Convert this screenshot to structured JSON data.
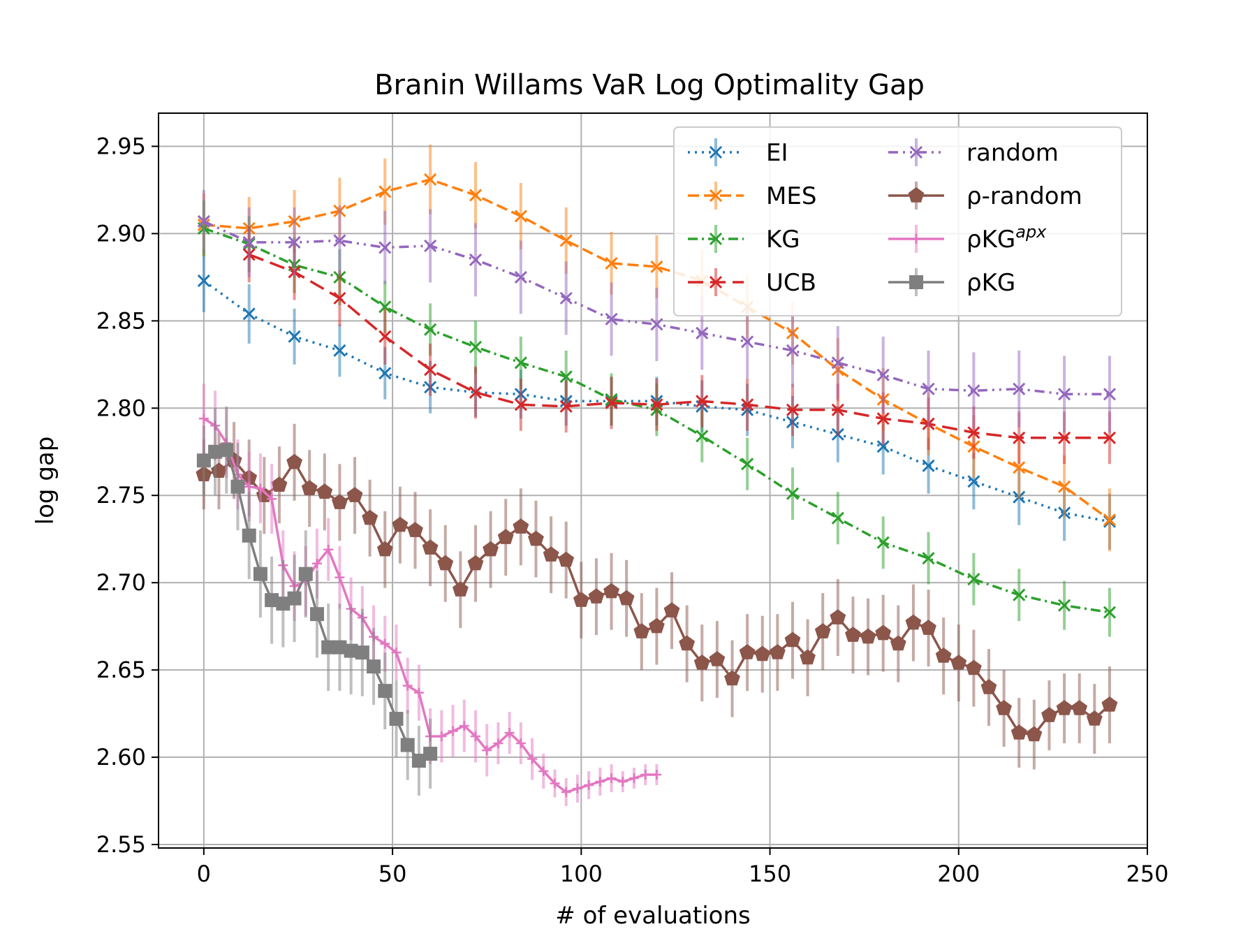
{
  "chart_data": {
    "type": "line",
    "title": "Branin Willams VaR Log Optimality Gap",
    "xlabel": "# of evaluations",
    "ylabel": "log gap",
    "xlim": [
      -12,
      250
    ],
    "ylim": [
      2.548,
      2.969
    ],
    "xticks": [
      0,
      50,
      100,
      150,
      200,
      250
    ],
    "xtick_labels": [
      "0",
      "50",
      "100",
      "150",
      "200",
      "250"
    ],
    "yticks": [
      2.55,
      2.6,
      2.65,
      2.7,
      2.75,
      2.8,
      2.85,
      2.9,
      2.95
    ],
    "ytick_labels": [
      "2.55",
      "2.60",
      "2.65",
      "2.70",
      "2.75",
      "2.80",
      "2.85",
      "2.90",
      "2.95"
    ],
    "grid": true,
    "legend_position": "top-right",
    "series": [
      {
        "name": "EI",
        "label": "EI",
        "color": "#1f77b4",
        "dash": "dotted",
        "marker": "x",
        "x": [
          0,
          12,
          24,
          36,
          48,
          60,
          72,
          84,
          96,
          108,
          120,
          132,
          144,
          156,
          168,
          180,
          192,
          204,
          216,
          228,
          240
        ],
        "y": [
          2.873,
          2.854,
          2.841,
          2.833,
          2.82,
          2.812,
          2.809,
          2.808,
          2.804,
          2.804,
          2.804,
          2.801,
          2.799,
          2.792,
          2.785,
          2.778,
          2.767,
          2.758,
          2.749,
          2.74,
          2.735
        ],
        "err": [
          0.018,
          0.017,
          0.016,
          0.015,
          0.015,
          0.015,
          0.014,
          0.014,
          0.014,
          0.014,
          0.014,
          0.015,
          0.015,
          0.015,
          0.016,
          0.016,
          0.016,
          0.016,
          0.016,
          0.016,
          0.016
        ]
      },
      {
        "name": "MES",
        "label": "MES",
        "color": "#ff7f0e",
        "dash": "dashed",
        "marker": "x",
        "x": [
          0,
          12,
          24,
          36,
          48,
          60,
          72,
          84,
          96,
          108,
          120,
          132,
          144,
          156,
          168,
          180,
          192,
          204,
          216,
          228,
          240
        ],
        "y": [
          2.905,
          2.903,
          2.907,
          2.913,
          2.924,
          2.931,
          2.922,
          2.91,
          2.896,
          2.883,
          2.881,
          2.873,
          2.858,
          2.843,
          2.822,
          2.805,
          2.791,
          2.778,
          2.766,
          2.755,
          2.736
        ],
        "err": [
          0.018,
          0.018,
          0.018,
          0.019,
          0.019,
          0.02,
          0.019,
          0.019,
          0.019,
          0.018,
          0.018,
          0.018,
          0.018,
          0.018,
          0.018,
          0.018,
          0.018,
          0.018,
          0.018,
          0.018,
          0.018
        ]
      },
      {
        "name": "KG",
        "label": "KG",
        "color": "#2ca02c",
        "dash": "dashdot",
        "marker": "x",
        "x": [
          0,
          12,
          24,
          36,
          48,
          60,
          72,
          84,
          96,
          108,
          120,
          132,
          144,
          156,
          168,
          180,
          192,
          204,
          216,
          228,
          240
        ],
        "y": [
          2.903,
          2.894,
          2.882,
          2.875,
          2.858,
          2.845,
          2.835,
          2.826,
          2.818,
          2.805,
          2.799,
          2.784,
          2.768,
          2.751,
          2.737,
          2.723,
          2.714,
          2.702,
          2.693,
          2.687,
          2.683
        ],
        "err": [
          0.016,
          0.016,
          0.016,
          0.016,
          0.015,
          0.015,
          0.015,
          0.015,
          0.015,
          0.015,
          0.015,
          0.015,
          0.015,
          0.015,
          0.015,
          0.015,
          0.015,
          0.015,
          0.015,
          0.014,
          0.014
        ]
      },
      {
        "name": "UCB",
        "label": "UCB",
        "color": "#d62728",
        "dash": "longdash",
        "marker": "x",
        "x": [
          12,
          24,
          36,
          48,
          60,
          72,
          84,
          96,
          108,
          120,
          132,
          144,
          156,
          168,
          180,
          192,
          204,
          216,
          228,
          240
        ],
        "y": [
          2.888,
          2.878,
          2.863,
          2.841,
          2.822,
          2.809,
          2.802,
          2.801,
          2.803,
          2.802,
          2.804,
          2.802,
          2.799,
          2.799,
          2.794,
          2.791,
          2.786,
          2.783,
          2.783,
          2.783
        ],
        "err": [
          0.016,
          0.016,
          0.016,
          0.016,
          0.015,
          0.015,
          0.015,
          0.015,
          0.015,
          0.015,
          0.015,
          0.015,
          0.015,
          0.015,
          0.015,
          0.015,
          0.015,
          0.015,
          0.015,
          0.015
        ]
      },
      {
        "name": "random",
        "label": "random",
        "color": "#9467bd",
        "dash": "dashdotdot",
        "marker": "x",
        "x": [
          0,
          12,
          24,
          36,
          48,
          60,
          72,
          84,
          96,
          108,
          120,
          132,
          144,
          156,
          168,
          180,
          192,
          204,
          216,
          228,
          240
        ],
        "y": [
          2.907,
          2.895,
          2.895,
          2.896,
          2.892,
          2.893,
          2.885,
          2.875,
          2.863,
          2.851,
          2.848,
          2.843,
          2.838,
          2.833,
          2.826,
          2.819,
          2.811,
          2.81,
          2.811,
          2.808,
          2.808
        ],
        "err": [
          0.018,
          0.02,
          0.02,
          0.02,
          0.021,
          0.021,
          0.021,
          0.021,
          0.021,
          0.021,
          0.021,
          0.021,
          0.021,
          0.021,
          0.021,
          0.022,
          0.022,
          0.022,
          0.022,
          0.022,
          0.022
        ]
      },
      {
        "name": "rho-random",
        "label": "ρ-random",
        "color": "#8c564b",
        "dash": "solid",
        "marker": "pentagon",
        "x": [
          0,
          4,
          8,
          12,
          16,
          20,
          24,
          28,
          32,
          36,
          40,
          44,
          48,
          52,
          56,
          60,
          64,
          68,
          72,
          76,
          80,
          84,
          88,
          92,
          96,
          100,
          104,
          108,
          112,
          116,
          120,
          124,
          128,
          132,
          136,
          140,
          144,
          148,
          152,
          156,
          160,
          164,
          168,
          172,
          176,
          180,
          184,
          188,
          192,
          196,
          200,
          204,
          208,
          212,
          216,
          220,
          224,
          228,
          232,
          236,
          240
        ],
        "y": [
          2.762,
          2.764,
          2.77,
          2.76,
          2.75,
          2.756,
          2.769,
          2.754,
          2.752,
          2.746,
          2.75,
          2.737,
          2.719,
          2.733,
          2.73,
          2.72,
          2.711,
          2.696,
          2.711,
          2.719,
          2.726,
          2.732,
          2.725,
          2.716,
          2.713,
          2.69,
          2.692,
          2.695,
          2.691,
          2.672,
          2.675,
          2.684,
          2.665,
          2.654,
          2.656,
          2.645,
          2.66,
          2.659,
          2.66,
          2.667,
          2.657,
          2.672,
          2.68,
          2.67,
          2.669,
          2.671,
          2.665,
          2.677,
          2.674,
          2.658,
          2.654,
          2.651,
          2.64,
          2.628,
          2.614,
          2.613,
          2.624,
          2.628,
          2.628,
          2.622,
          2.63
        ],
        "err": [
          0.02,
          0.022,
          0.022,
          0.022,
          0.022,
          0.022,
          0.022,
          0.022,
          0.022,
          0.022,
          0.022,
          0.022,
          0.022,
          0.022,
          0.022,
          0.022,
          0.022,
          0.022,
          0.022,
          0.022,
          0.022,
          0.022,
          0.022,
          0.022,
          0.022,
          0.022,
          0.022,
          0.022,
          0.022,
          0.022,
          0.022,
          0.022,
          0.022,
          0.022,
          0.022,
          0.022,
          0.022,
          0.022,
          0.022,
          0.022,
          0.022,
          0.022,
          0.022,
          0.022,
          0.022,
          0.022,
          0.022,
          0.022,
          0.022,
          0.022,
          0.022,
          0.022,
          0.022,
          0.022,
          0.02,
          0.02,
          0.02,
          0.02,
          0.02,
          0.02,
          0.022
        ]
      },
      {
        "name": "rho-KG-apx",
        "label": "ρKG",
        "label_sup": "apx",
        "color": "#e377c2",
        "dash": "solid",
        "marker": "plus",
        "x": [
          0,
          3,
          6,
          9,
          12,
          15,
          18,
          21,
          24,
          27,
          30,
          33,
          36,
          39,
          42,
          45,
          48,
          51,
          54,
          57,
          60,
          63,
          66,
          69,
          72,
          75,
          78,
          81,
          84,
          87,
          90,
          93,
          96,
          99,
          102,
          105,
          108,
          111,
          114,
          117,
          120
        ],
        "y": [
          2.794,
          2.79,
          2.78,
          2.762,
          2.755,
          2.754,
          2.748,
          2.71,
          2.698,
          2.701,
          2.711,
          2.719,
          2.703,
          2.685,
          2.68,
          2.669,
          2.665,
          2.66,
          2.641,
          2.637,
          2.612,
          2.612,
          2.615,
          2.618,
          2.612,
          2.604,
          2.608,
          2.614,
          2.608,
          2.599,
          2.592,
          2.585,
          2.58,
          2.582,
          2.584,
          2.586,
          2.588,
          2.586,
          2.588,
          2.59,
          2.59
        ],
        "err": [
          0.02,
          0.02,
          0.02,
          0.02,
          0.02,
          0.02,
          0.02,
          0.02,
          0.02,
          0.02,
          0.02,
          0.018,
          0.018,
          0.018,
          0.018,
          0.018,
          0.016,
          0.016,
          0.016,
          0.016,
          0.016,
          0.015,
          0.015,
          0.015,
          0.015,
          0.015,
          0.012,
          0.012,
          0.012,
          0.012,
          0.01,
          0.008,
          0.008,
          0.008,
          0.008,
          0.008,
          0.008,
          0.006,
          0.006,
          0.006,
          0.006
        ]
      },
      {
        "name": "rho-KG",
        "label": "ρKG",
        "color": "#7f7f7f",
        "dash": "solid",
        "marker": "square",
        "x": [
          0,
          3,
          6,
          9,
          12,
          15,
          18,
          21,
          24,
          27,
          30,
          33,
          36,
          39,
          42,
          45,
          48,
          51,
          54,
          57,
          60
        ],
        "y": [
          2.77,
          2.775,
          2.776,
          2.755,
          2.727,
          2.705,
          2.69,
          2.688,
          2.691,
          2.705,
          2.682,
          2.663,
          2.663,
          2.661,
          2.66,
          2.652,
          2.638,
          2.622,
          2.607,
          2.598,
          2.602
        ],
        "err": [
          0.02,
          0.025,
          0.025,
          0.025,
          0.025,
          0.025,
          0.025,
          0.025,
          0.025,
          0.025,
          0.025,
          0.025,
          0.025,
          0.025,
          0.025,
          0.022,
          0.022,
          0.022,
          0.02,
          0.02,
          0.02
        ]
      }
    ]
  }
}
